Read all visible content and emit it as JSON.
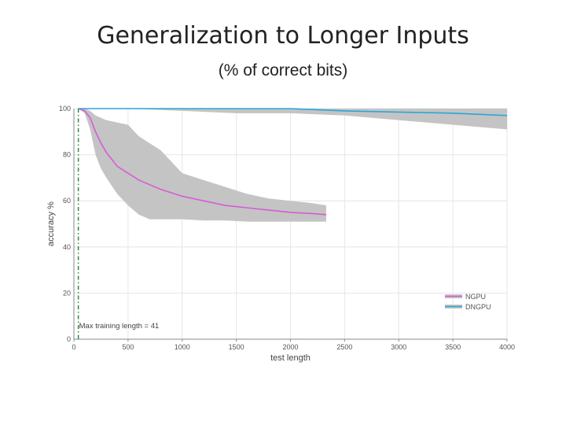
{
  "slide": {
    "title": "Generalization to Longer Inputs",
    "subtitle": "(% of correct bits)"
  },
  "chart_data": {
    "type": "line",
    "xlabel": "test length",
    "ylabel": "accuracy %",
    "xlim": [
      0,
      4000
    ],
    "ylim": [
      0,
      100
    ],
    "x_ticks": [
      0,
      500,
      1000,
      1500,
      2000,
      2500,
      3000,
      3500,
      4000
    ],
    "x_tick_labels": [
      "0",
      "500",
      "1000",
      "1500",
      "2000",
      "2500",
      "3000",
      "3500",
      "4000"
    ],
    "y_ticks": [
      0,
      20,
      40,
      60,
      80,
      100
    ],
    "y_tick_labels": [
      "0",
      "20",
      "40",
      "60",
      "80",
      "100"
    ],
    "grid": true,
    "legend": {
      "position": "bottom-right",
      "entries": [
        "NGPU",
        "DNGPU"
      ]
    },
    "annotation": {
      "text": "Max training length = 41",
      "x": 41,
      "line_color": "#2e8b3d"
    },
    "series": [
      {
        "name": "NGPU",
        "color": "#d75bd6",
        "x": [
          41,
          100,
          150,
          200,
          250,
          300,
          400,
          500,
          600,
          700,
          800,
          1000,
          1200,
          1400,
          1600,
          1800,
          2000,
          2200,
          2330
        ],
        "y": [
          100,
          99,
          96,
          90,
          85,
          81,
          75,
          72,
          69,
          67,
          65,
          62,
          60,
          58,
          57,
          56,
          55,
          54.5,
          54
        ],
        "upper": [
          100,
          100,
          99,
          97,
          96,
          95,
          94,
          93,
          88,
          85,
          82,
          72,
          69,
          66,
          63,
          61,
          60,
          59,
          58
        ],
        "lower": [
          100,
          98,
          91,
          80,
          74,
          70,
          63,
          58,
          54,
          52,
          52,
          52,
          51.5,
          51.5,
          51,
          51,
          51,
          51,
          51
        ]
      },
      {
        "name": "DNGPU",
        "color": "#2aa7d8",
        "x": [
          41,
          500,
          1000,
          1500,
          2000,
          2500,
          3000,
          3500,
          4000
        ],
        "y": [
          100,
          100,
          100,
          100,
          100,
          99,
          98.5,
          98,
          97
        ],
        "upper": [
          100,
          100,
          100,
          100,
          100,
          100,
          100,
          100,
          100
        ],
        "lower": [
          100,
          100,
          99,
          98,
          98,
          97,
          95,
          93,
          91
        ]
      }
    ]
  }
}
